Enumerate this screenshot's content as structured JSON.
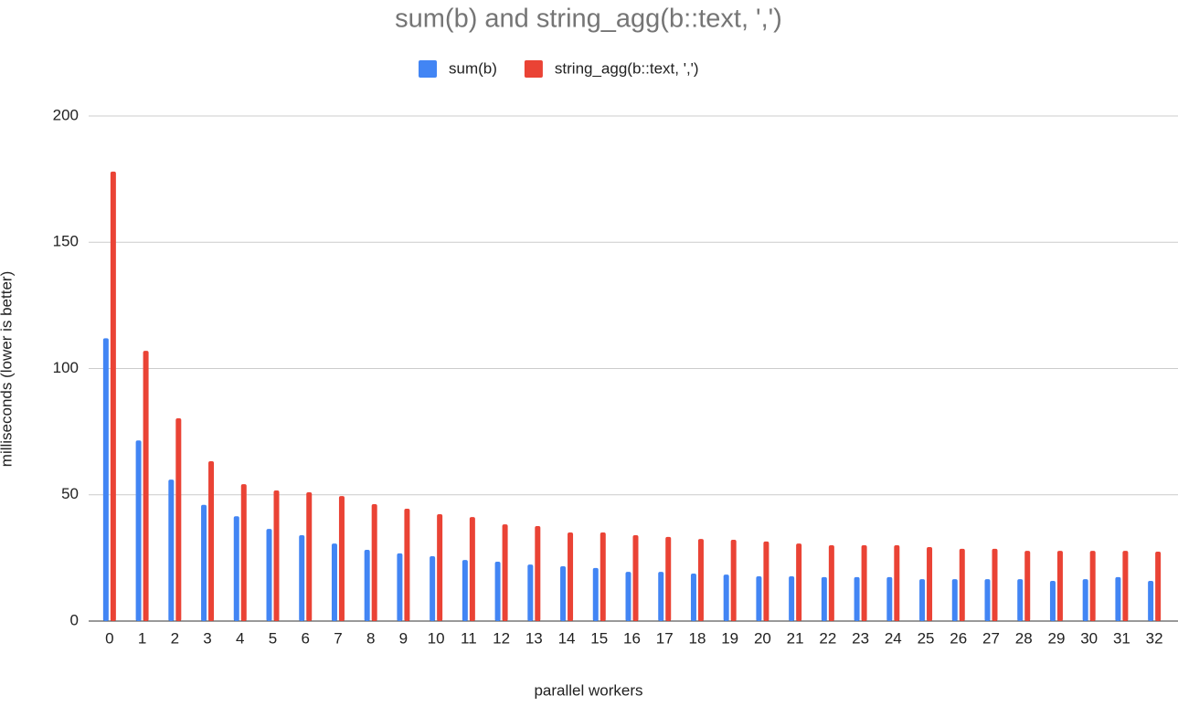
{
  "chart_data": {
    "type": "bar",
    "title": "sum(b) and string_agg(b::text, ',')",
    "x_label": "parallel workers",
    "y_label": "milliseconds (lower is better)",
    "categories": [
      "0",
      "1",
      "2",
      "3",
      "4",
      "5",
      "6",
      "7",
      "8",
      "9",
      "10",
      "11",
      "12",
      "13",
      "14",
      "15",
      "16",
      "17",
      "18",
      "19",
      "20",
      "21",
      "22",
      "23",
      "24",
      "25",
      "26",
      "27",
      "28",
      "29",
      "30",
      "31",
      "32"
    ],
    "series": [
      {
        "name": "sum(b)",
        "color": "#4285f4",
        "values": [
          112,
          71.5,
          56,
          46,
          41.5,
          36.5,
          34,
          30.7,
          28.2,
          26.8,
          25.7,
          24.2,
          23.5,
          22.4,
          21.7,
          21,
          19.5,
          19.5,
          18.8,
          18.4,
          17.7,
          17.7,
          17.4,
          17.4,
          17.4,
          16.6,
          16.6,
          16.6,
          16.6,
          15.9,
          16.6,
          17.4,
          15.9
        ]
      },
      {
        "name": "string_agg(b::text, ',')",
        "color": "#ea4335",
        "values": [
          178,
          107,
          80.3,
          63.3,
          54.2,
          51.7,
          51,
          49.5,
          46.3,
          44.5,
          42.3,
          41.2,
          38.3,
          37.6,
          35.1,
          35.1,
          34,
          33.3,
          32.5,
          32.2,
          31.5,
          30.7,
          30,
          30,
          30,
          29.3,
          28.6,
          28.6,
          27.8,
          27.8,
          27.8,
          27.8,
          27.5
        ]
      }
    ],
    "ylim": [
      0,
      200
    ],
    "yticks": [
      0,
      50,
      100,
      150,
      200
    ],
    "grid": true,
    "legend": "top"
  }
}
